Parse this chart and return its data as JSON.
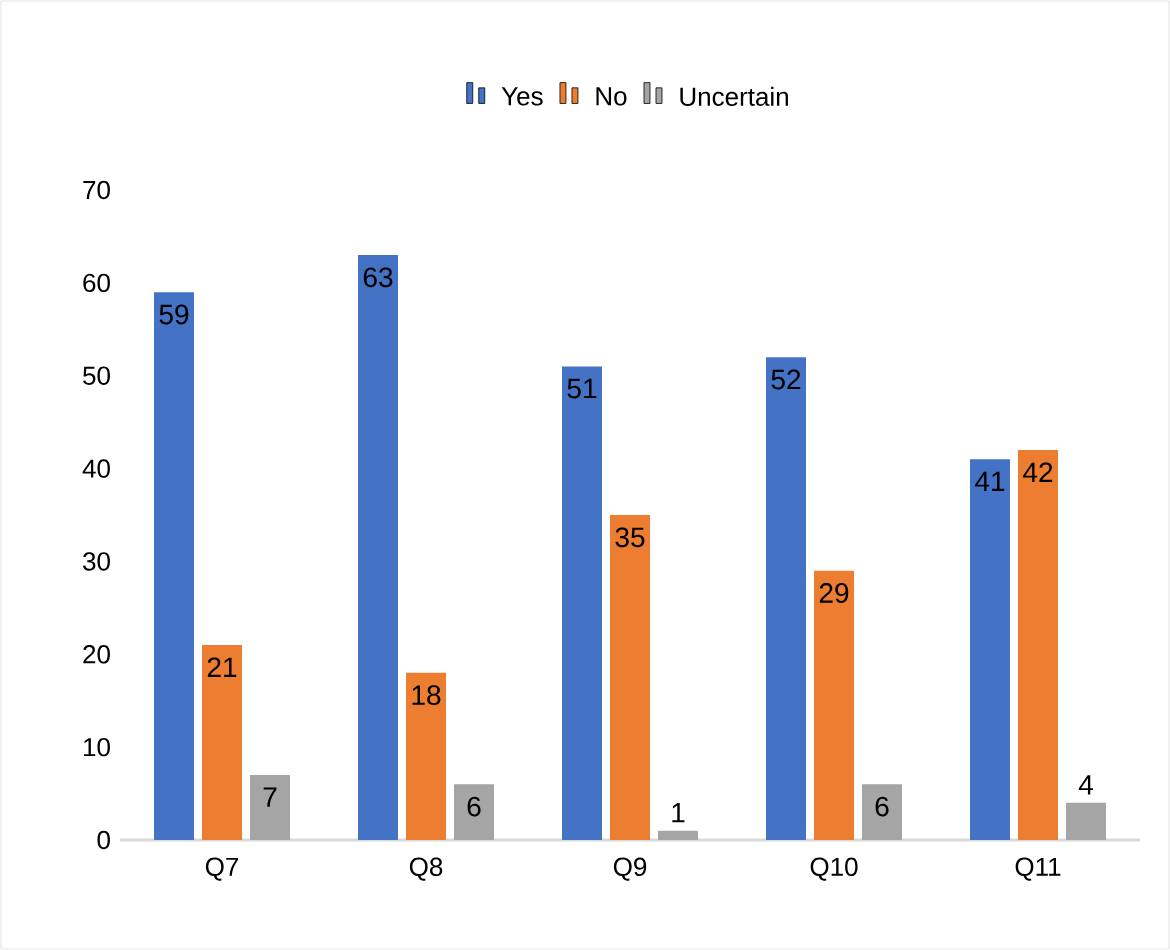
{
  "chart_data": {
    "type": "bar",
    "categories": [
      "Q7",
      "Q8",
      "Q9",
      "Q10",
      "Q11"
    ],
    "series": [
      {
        "name": "Yes",
        "color": "#4472c4",
        "values": [
          59,
          63,
          51,
          52,
          41
        ]
      },
      {
        "name": "No",
        "color": "#ed7d31",
        "values": [
          21,
          18,
          35,
          29,
          42
        ]
      },
      {
        "name": "Uncertain",
        "color": "#a5a5a5",
        "values": [
          7,
          6,
          1,
          6,
          4
        ]
      }
    ],
    "ylim": [
      0,
      70
    ],
    "yticks": [
      0,
      10,
      20,
      30,
      40,
      50,
      60,
      70
    ],
    "data_labels": true,
    "legend": "top"
  }
}
